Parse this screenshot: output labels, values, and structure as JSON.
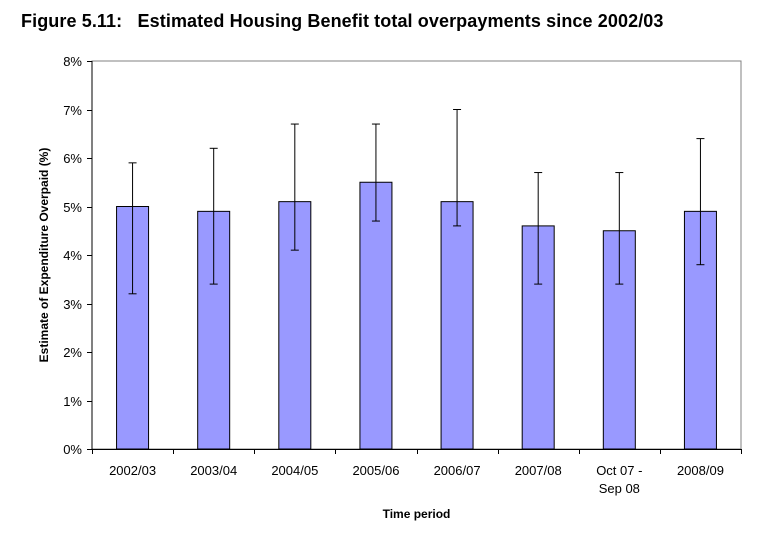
{
  "chart_data": {
    "type": "bar",
    "title": "Figure 5.11:   Estimated Housing Benefit total overpayments since 2002/03",
    "xlabel": "Time period",
    "ylabel": "Estimate of Expenditure Overpaid (%)",
    "ylim": [
      0,
      8
    ],
    "yticks": [
      0,
      1,
      2,
      3,
      4,
      5,
      6,
      7,
      8
    ],
    "ytick_labels": [
      "0%",
      "1%",
      "2%",
      "3%",
      "4%",
      "5%",
      "6%",
      "7%",
      "8%"
    ],
    "categories": [
      [
        "2002/03"
      ],
      [
        "2003/04"
      ],
      [
        "2004/05"
      ],
      [
        "2005/06"
      ],
      [
        "2006/07"
      ],
      [
        "2007/08"
      ],
      [
        "Oct 07 -",
        "Sep 08"
      ],
      [
        "2008/09"
      ]
    ],
    "values": [
      5.0,
      4.9,
      5.1,
      5.5,
      5.1,
      4.6,
      4.5,
      4.9
    ],
    "error_low": [
      3.2,
      3.4,
      4.1,
      4.7,
      4.6,
      3.4,
      3.4,
      3.8
    ],
    "error_high": [
      5.9,
      6.2,
      6.7,
      6.7,
      7.0,
      5.7,
      5.7,
      6.4
    ],
    "grid": false,
    "colors": {
      "bar": "#9999ff",
      "outline": "#000000",
      "plot_border": "#808080"
    }
  }
}
